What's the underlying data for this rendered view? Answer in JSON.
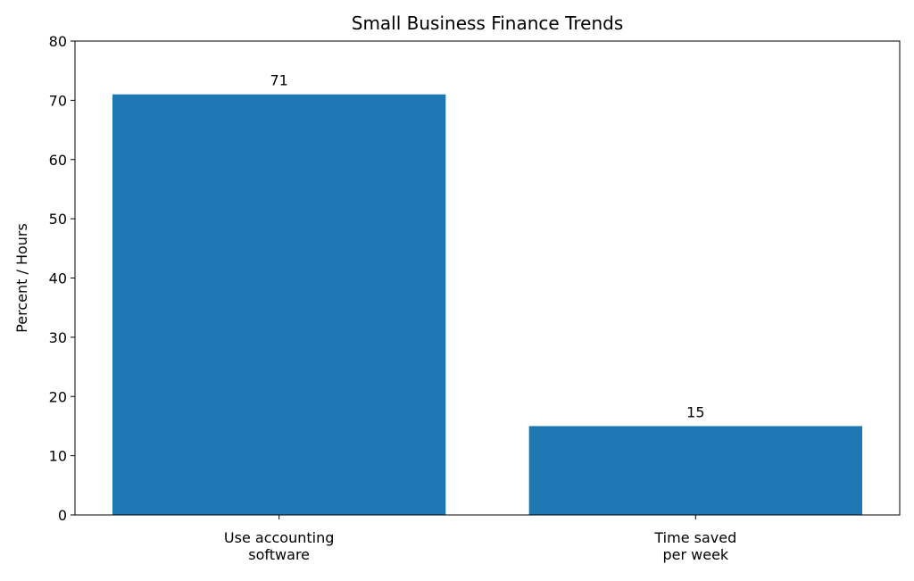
{
  "chart_data": {
    "type": "bar",
    "title": "Small Business Finance Trends",
    "y_label": "Percent / Hours",
    "categories": [
      "Use accounting\nsoftware",
      "Time saved\nper week"
    ],
    "values": [
      71,
      15
    ],
    "color": "#1f77b4",
    "ylim": [
      0,
      80
    ],
    "yticks": [
      0,
      10,
      20,
      30,
      40,
      50,
      60,
      70,
      80
    ],
    "grid": false
  }
}
